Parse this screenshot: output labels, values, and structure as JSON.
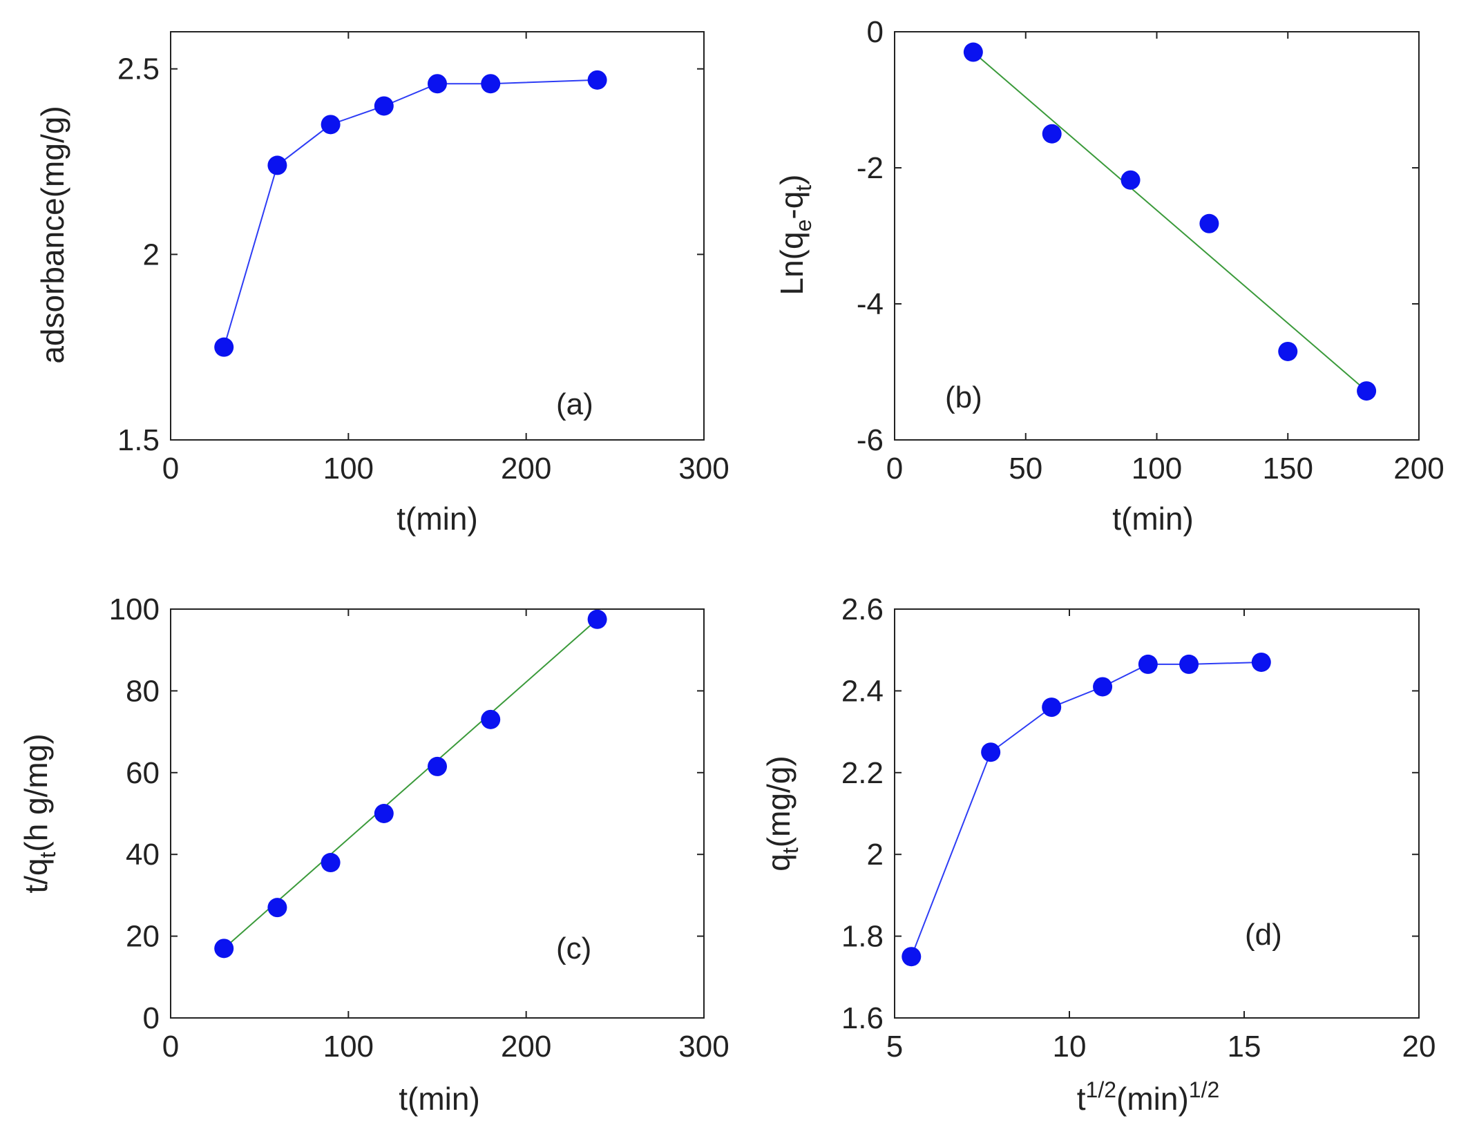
{
  "colors": {
    "marker": "#0a12f0",
    "data_line": "#2d3cf5",
    "fit_line": "#3a9a3a",
    "axis": "#222222",
    "background": "#ffffff"
  },
  "chart_data": [
    {
      "id": "a",
      "type": "line",
      "panel_label": "(a)",
      "xlabel": "t(min)",
      "ylabel": "adsorbance(mg/g)",
      "xlim": [
        0,
        300
      ],
      "ylim": [
        1.5,
        2.6
      ],
      "xticks": [
        0,
        100,
        200,
        300
      ],
      "yticks": [
        1.5,
        2,
        2.5
      ],
      "xtick_labels": [
        "0",
        "100",
        "200",
        "300"
      ],
      "ytick_labels": [
        "1.5",
        "2",
        "2.5"
      ],
      "series": [
        {
          "name": "data",
          "style": "markers+line",
          "x": [
            30,
            60,
            90,
            120,
            150,
            180,
            240
          ],
          "y": [
            1.75,
            2.24,
            2.35,
            2.4,
            2.46,
            2.46,
            2.47
          ]
        }
      ]
    },
    {
      "id": "b",
      "type": "scatter",
      "panel_label": "(b)",
      "xlabel": "t(min)",
      "ylabel": "Ln(q",
      "ylabel_sub1": "e",
      "ylabel_mid": "-q",
      "ylabel_sub2": "t",
      "ylabel_end": ")",
      "xlim": [
        0,
        200
      ],
      "ylim": [
        -6,
        0
      ],
      "xticks": [
        0,
        50,
        100,
        150,
        200
      ],
      "yticks": [
        -6,
        -4,
        -2,
        0
      ],
      "xtick_labels": [
        "0",
        "50",
        "100",
        "150",
        "200"
      ],
      "ytick_labels": [
        "-6",
        "-4",
        "-2",
        "0"
      ],
      "series": [
        {
          "name": "data",
          "style": "markers",
          "x": [
            30,
            60,
            90,
            120,
            150,
            180
          ],
          "y": [
            -0.3,
            -1.5,
            -2.18,
            -2.82,
            -4.7,
            -5.28
          ]
        },
        {
          "name": "fit",
          "style": "fit-line",
          "x": [
            30,
            180
          ],
          "y": [
            -0.3,
            -5.28
          ]
        }
      ]
    },
    {
      "id": "c",
      "type": "scatter",
      "panel_label": "(c)",
      "xlabel": "t(min)",
      "ylabel": "t/q",
      "ylabel_sub1": "t",
      "ylabel_end": "(h g/mg)",
      "xlim": [
        0,
        300
      ],
      "ylim": [
        0,
        100
      ],
      "xticks": [
        0,
        100,
        200,
        300
      ],
      "yticks": [
        0,
        20,
        40,
        60,
        80,
        100
      ],
      "xtick_labels": [
        "0",
        "100",
        "200",
        "300"
      ],
      "ytick_labels": [
        "0",
        "20",
        "40",
        "60",
        "80",
        "100"
      ],
      "series": [
        {
          "name": "data",
          "style": "markers",
          "x": [
            30,
            60,
            90,
            120,
            150,
            180,
            240
          ],
          "y": [
            17,
            27,
            38,
            50,
            61.5,
            73,
            97.5
          ]
        },
        {
          "name": "fit",
          "style": "fit-line",
          "x": [
            30,
            240
          ],
          "y": [
            17,
            97.5
          ]
        }
      ]
    },
    {
      "id": "d",
      "type": "line",
      "panel_label": "(d)",
      "xlabel": "t",
      "xlabel_sup1": "1/2",
      "xlabel_mid": "(min)",
      "xlabel_sup2": "1/2",
      "ylabel": "q",
      "ylabel_sub1": "t",
      "ylabel_end": "(mg/g)",
      "xlim": [
        5,
        20
      ],
      "ylim": [
        1.6,
        2.6
      ],
      "xticks": [
        5,
        10,
        15,
        20
      ],
      "yticks": [
        1.6,
        1.8,
        2,
        2.2,
        2.4,
        2.6
      ],
      "xtick_labels": [
        "5",
        "10",
        "15",
        "20"
      ],
      "ytick_labels": [
        "1.6",
        "1.8",
        "2",
        "2.2",
        "2.4",
        "2.6"
      ],
      "series": [
        {
          "name": "data",
          "style": "markers+line",
          "x": [
            5.48,
            7.75,
            9.49,
            10.95,
            12.25,
            13.42,
            15.49
          ],
          "y": [
            1.75,
            2.25,
            2.36,
            2.41,
            2.465,
            2.465,
            2.47
          ]
        }
      ]
    }
  ]
}
